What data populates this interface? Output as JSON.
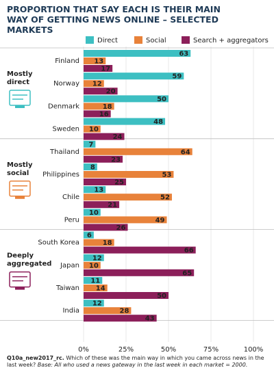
{
  "chart_data": {
    "type": "bar",
    "orientation": "horizontal",
    "title": "PROPORTION THAT SAY EACH IS THEIR MAIN WAY OF GETTING NEWS ONLINE – SELECTED MARKETS",
    "categories": [
      "Finland",
      "Norway",
      "Denmark",
      "Sweden",
      "Thailand",
      "Philippines",
      "Chile",
      "Peru",
      "South Korea",
      "Japan",
      "Taiwan",
      "India"
    ],
    "groups": [
      [
        "Mostly",
        "direct"
      ],
      [
        "Mostly",
        "social"
      ],
      [
        "Deeply",
        "aggregated"
      ]
    ],
    "series": [
      {
        "name": "Direct",
        "color": "#3dbfc2",
        "values": [
          63,
          59,
          50,
          48,
          7,
          8,
          13,
          10,
          6,
          12,
          11,
          12
        ]
      },
      {
        "name": "Social",
        "color": "#e8823a",
        "values": [
          13,
          12,
          18,
          10,
          64,
          53,
          52,
          49,
          18,
          10,
          14,
          28
        ]
      },
      {
        "name": "Search + aggregators",
        "color": "#8c1f5a",
        "values": [
          17,
          20,
          16,
          24,
          23,
          25,
          21,
          26,
          66,
          65,
          50,
          43
        ]
      }
    ],
    "xlim": [
      0,
      100
    ],
    "xticks": [
      {
        "value": 0,
        "label": "0%"
      },
      {
        "value": 25,
        "label": "25%"
      },
      {
        "value": 50,
        "label": "50%"
      },
      {
        "value": 75,
        "label": "75%"
      },
      {
        "value": 100,
        "label": "100%"
      }
    ],
    "grid": true,
    "footnote": {
      "code": "Q10a_new2017_rc.",
      "question": "Which of these was the main way in which you came across news in the last week?",
      "base_label": "Base:",
      "base": "All who used a news gateway in the last week in each market = 2000."
    }
  }
}
